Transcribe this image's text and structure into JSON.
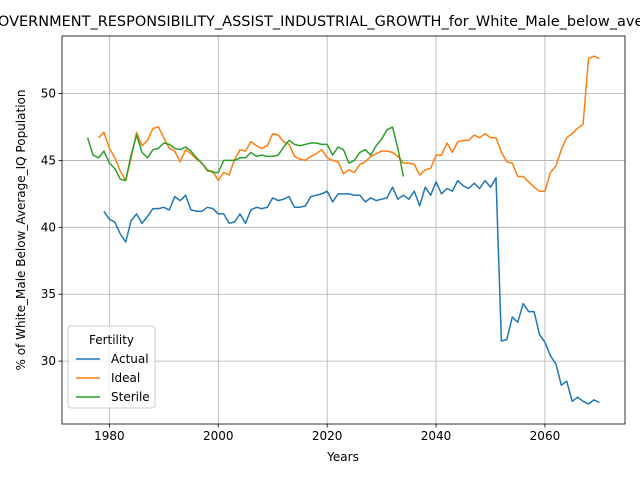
{
  "chart_data": {
    "type": "line",
    "title": "GOVERNMENT_RESPONSIBILITY_ASSIST_INDUSTRIAL_GROWTH_for_White_Male_below_average_IQ",
    "xlabel": "Years",
    "ylabel": "% of White_Male Below_Average_IQ Population",
    "xlim": [
      1971.3,
      2074.7
    ],
    "ylim": [
      25.3,
      54.3
    ],
    "xticks": [
      1980,
      2000,
      2020,
      2040,
      2060
    ],
    "yticks": [
      30,
      35,
      40,
      45,
      50
    ],
    "grid": true,
    "legend": {
      "title": "Fertility",
      "position": "lower-left"
    },
    "series": [
      {
        "name": "Actual",
        "color": "#1f77b4",
        "x": [
          1979,
          1980,
          1981,
          1982,
          1983,
          1984,
          1985,
          1986,
          1987,
          1988,
          1989,
          1990,
          1991,
          1992,
          1993,
          1994,
          1995,
          1996,
          1997,
          1998,
          1999,
          2000,
          2001,
          2002,
          2003,
          2004,
          2005,
          2006,
          2007,
          2008,
          2009,
          2010,
          2011,
          2012,
          2013,
          2014,
          2015,
          2016,
          2017,
          2018,
          2019,
          2020,
          2021,
          2022,
          2023,
          2024,
          2025,
          2026,
          2027,
          2028,
          2029,
          2030,
          2031,
          2032,
          2033,
          2034,
          2035,
          2036,
          2037,
          2038,
          2039,
          2040,
          2041,
          2042,
          2043,
          2044,
          2045,
          2046,
          2047,
          2048,
          2049,
          2050,
          2051,
          2052,
          2053,
          2054,
          2055,
          2056,
          2057,
          2058,
          2059,
          2060,
          2061,
          2062,
          2063,
          2064,
          2065,
          2066,
          2067,
          2068,
          2069,
          2070
        ],
        "y": [
          41.2,
          40.6,
          40.4,
          39.5,
          38.9,
          40.5,
          41.0,
          40.3,
          40.8,
          41.4,
          41.4,
          41.5,
          41.3,
          42.3,
          42.0,
          42.4,
          41.3,
          41.2,
          41.2,
          41.5,
          41.4,
          41.0,
          41.0,
          40.3,
          40.4,
          41.0,
          40.3,
          41.3,
          41.5,
          41.4,
          41.5,
          42.2,
          42.0,
          42.1,
          42.3,
          41.5,
          41.5,
          41.6,
          42.3,
          42.4,
          42.5,
          42.7,
          41.9,
          42.5,
          42.5,
          42.5,
          42.4,
          42.4,
          41.9,
          42.2,
          42.0,
          42.1,
          42.2,
          43.0,
          42.1,
          42.4,
          42.1,
          42.7,
          41.6,
          43.0,
          42.4,
          43.4,
          42.5,
          42.9,
          42.7,
          43.5,
          43.1,
          42.9,
          43.3,
          42.9,
          43.5,
          43.0,
          43.7,
          31.5,
          31.6,
          33.3,
          32.9,
          34.3,
          33.7,
          33.7,
          32.0,
          31.4,
          30.4,
          29.8,
          28.2,
          28.5,
          27.0,
          27.3,
          27.0,
          26.8,
          27.1,
          26.9
        ]
      },
      {
        "name": "Ideal",
        "color": "#ff7f0e",
        "x": [
          1978,
          1979,
          1980,
          1981,
          1982,
          1983,
          1984,
          1985,
          1986,
          1987,
          1988,
          1989,
          1990,
          1991,
          1992,
          1993,
          1994,
          1995,
          1996,
          1997,
          1998,
          1999,
          2000,
          2001,
          2002,
          2003,
          2004,
          2005,
          2006,
          2007,
          2008,
          2009,
          2010,
          2011,
          2012,
          2013,
          2014,
          2015,
          2016,
          2017,
          2018,
          2019,
          2020,
          2021,
          2022,
          2023,
          2024,
          2025,
          2026,
          2027,
          2028,
          2029,
          2030,
          2031,
          2032,
          2033,
          2034,
          2035,
          2036,
          2037,
          2038,
          2039,
          2040,
          2041,
          2042,
          2043,
          2044,
          2045,
          2046,
          2047,
          2048,
          2049,
          2050,
          2051,
          2052,
          2053,
          2054,
          2055,
          2056,
          2057,
          2058,
          2059,
          2060,
          2061,
          2062,
          2063,
          2064,
          2065,
          2066,
          2067,
          2068,
          2069,
          2070
        ],
        "y": [
          46.7,
          47.1,
          45.9,
          45.2,
          44.2,
          43.5,
          45.2,
          47.1,
          46.1,
          46.5,
          47.4,
          47.5,
          46.7,
          45.9,
          45.7,
          44.9,
          45.8,
          45.5,
          45.1,
          44.8,
          44.2,
          44.2,
          43.5,
          44.1,
          43.9,
          45.1,
          45.8,
          45.7,
          46.4,
          46.1,
          45.9,
          46.1,
          47.0,
          46.9,
          46.4,
          46.2,
          45.3,
          45.1,
          45.0,
          45.3,
          45.5,
          45.8,
          45.2,
          45.0,
          44.9,
          44.0,
          44.3,
          44.1,
          44.7,
          44.9,
          45.3,
          45.5,
          45.7,
          45.7,
          45.6,
          45.3,
          44.8,
          44.8,
          44.7,
          43.9,
          44.3,
          44.4,
          45.4,
          45.4,
          46.3,
          45.6,
          46.4,
          46.5,
          46.5,
          46.9,
          46.7,
          47.0,
          46.7,
          46.7,
          45.6,
          44.9,
          44.8,
          43.8,
          43.8,
          43.4,
          43.0,
          42.7,
          42.7,
          44.1,
          44.6,
          45.8,
          46.7,
          47.0,
          47.4,
          47.7,
          52.6,
          52.8,
          52.6
        ]
      },
      {
        "name": "Sterile",
        "color": "#2ca02c",
        "x": [
          1976,
          1977,
          1978,
          1979,
          1980,
          1981,
          1982,
          1983,
          1984,
          1985,
          1986,
          1987,
          1988,
          1989,
          1990,
          1991,
          1992,
          1993,
          1994,
          1995,
          1996,
          1997,
          1998,
          1999,
          2000,
          2001,
          2002,
          2003,
          2004,
          2005,
          2006,
          2007,
          2008,
          2009,
          2010,
          2011,
          2012,
          2013,
          2014,
          2015,
          2016,
          2017,
          2018,
          2019,
          2020,
          2021,
          2022,
          2023,
          2024,
          2025,
          2026,
          2027,
          2028,
          2029,
          2030,
          2031,
          2032,
          2033,
          2034
        ],
        "y": [
          46.7,
          45.4,
          45.2,
          45.7,
          44.8,
          44.4,
          43.6,
          43.5,
          45.4,
          46.9,
          45.6,
          45.2,
          45.8,
          45.9,
          46.3,
          46.2,
          45.9,
          45.8,
          46.0,
          45.7,
          45.2,
          44.8,
          44.3,
          44.1,
          44.1,
          45.0,
          45.0,
          45.0,
          45.2,
          45.2,
          45.6,
          45.3,
          45.4,
          45.3,
          45.3,
          45.4,
          46.0,
          46.5,
          46.2,
          46.1,
          46.2,
          46.3,
          46.3,
          46.2,
          46.2,
          45.4,
          46.0,
          45.8,
          44.8,
          45.0,
          45.6,
          45.8,
          45.4,
          46.1,
          46.6,
          47.3,
          47.5,
          45.9,
          43.8
        ]
      }
    ]
  }
}
